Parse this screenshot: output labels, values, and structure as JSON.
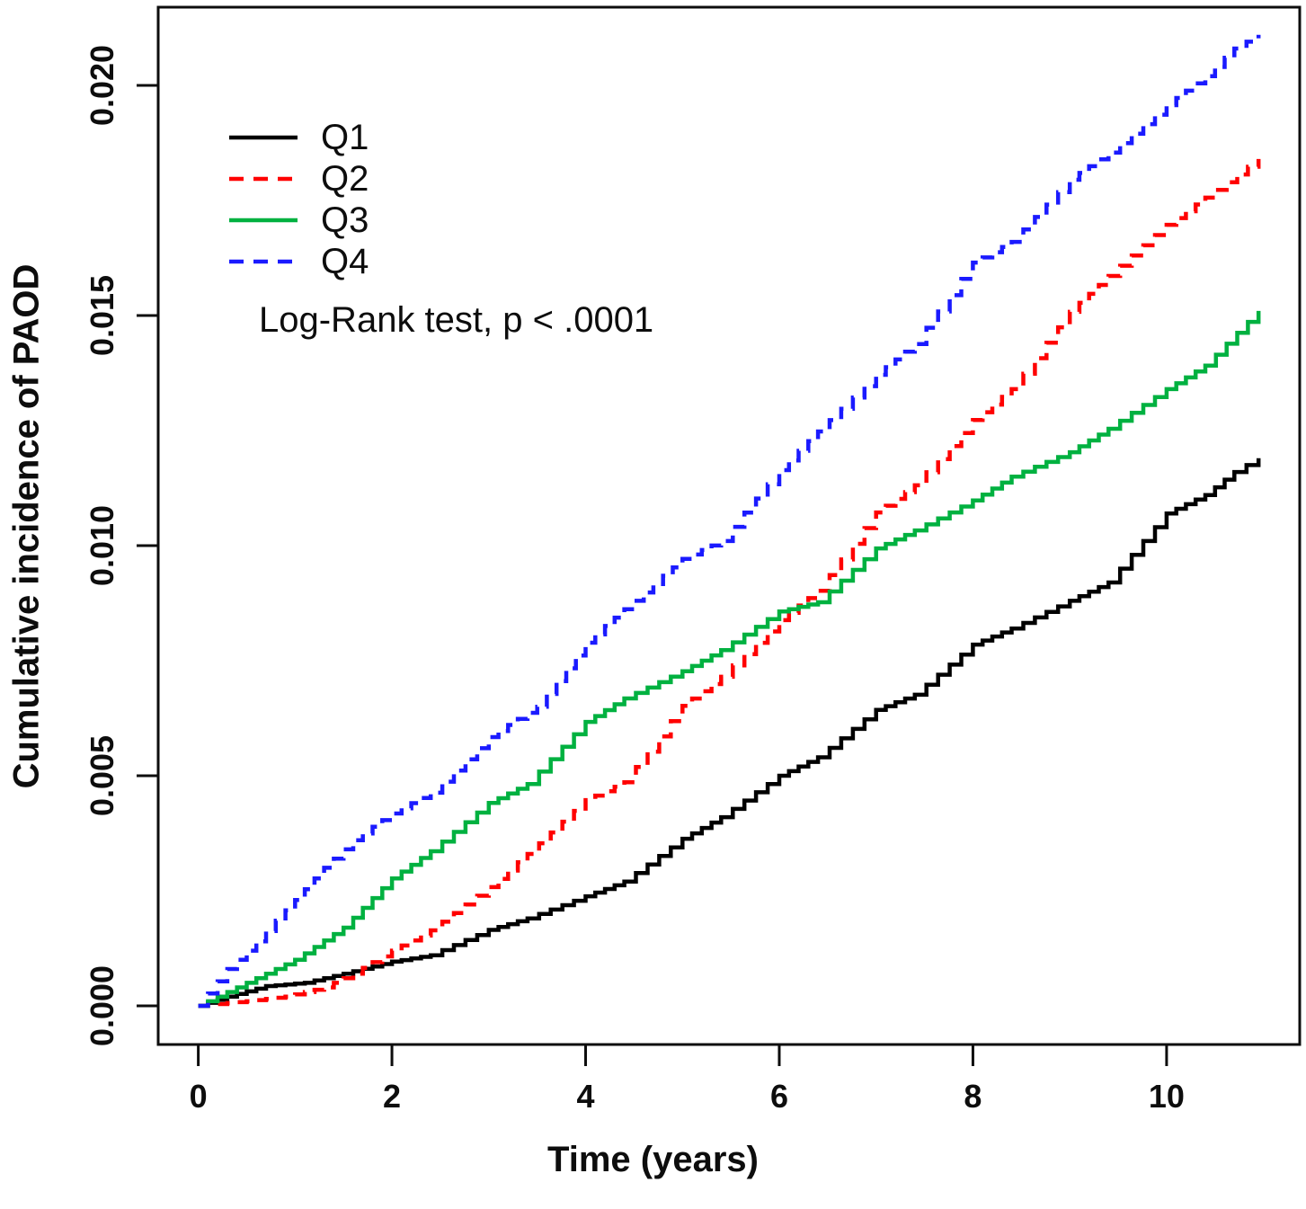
{
  "chart_data": {
    "type": "line",
    "subtype": "cumulative-incidence-step-curves",
    "title": "",
    "xlabel": "Time (years)",
    "ylabel": "Cumulative incidence of PAOD",
    "annotation": "Log-Rank test, p < .0001",
    "xlim": [
      -0.42,
      11.35
    ],
    "ylim": [
      0,
      0.0212
    ],
    "x_ticks": [
      0,
      2,
      4,
      6,
      8,
      10
    ],
    "x_tick_labels": [
      "0",
      "2",
      "4",
      "6",
      "8",
      "10"
    ],
    "y_ticks": [
      0.0,
      0.005,
      0.01,
      0.015,
      0.02
    ],
    "y_tick_labels": [
      "0.000",
      "0.005",
      "0.010",
      "0.015",
      "0.020"
    ],
    "grid": false,
    "legend_position": "top-left",
    "axis_color": "#0d0d0d",
    "series": [
      {
        "name": "Q1",
        "color": "#000000",
        "style": "solid",
        "points": [
          [
            0,
            0
          ],
          [
            0.3,
            0.0002
          ],
          [
            0.7,
            0.00043
          ],
          [
            1.1,
            0.0005
          ],
          [
            1.5,
            0.0007
          ],
          [
            2.0,
            0.00096
          ],
          [
            2.4,
            0.0011
          ],
          [
            3.0,
            0.00165
          ],
          [
            3.4,
            0.0019
          ],
          [
            4.0,
            0.00238
          ],
          [
            4.4,
            0.0027
          ],
          [
            5.0,
            0.00363
          ],
          [
            5.4,
            0.0041
          ],
          [
            6.0,
            0.005
          ],
          [
            6.4,
            0.0054
          ],
          [
            7.0,
            0.00643
          ],
          [
            7.4,
            0.00676
          ],
          [
            8.0,
            0.00785
          ],
          [
            8.4,
            0.0082
          ],
          [
            9.0,
            0.0088
          ],
          [
            9.4,
            0.0092
          ],
          [
            10.0,
            0.0107
          ],
          [
            10.4,
            0.0111
          ],
          [
            10.7,
            0.0116
          ],
          [
            10.95,
            0.0119
          ]
        ]
      },
      {
        "name": "Q2",
        "color": "#ff0000",
        "style": "dashed",
        "points": [
          [
            0,
            0
          ],
          [
            0.5,
            0.0001
          ],
          [
            0.9,
            0.0002
          ],
          [
            1.3,
            0.0004
          ],
          [
            1.6,
            0.0007
          ],
          [
            2.0,
            0.0012
          ],
          [
            2.4,
            0.00164
          ],
          [
            3.0,
            0.00258
          ],
          [
            3.4,
            0.0033
          ],
          [
            4.0,
            0.00447
          ],
          [
            4.4,
            0.00486
          ],
          [
            5.0,
            0.00652
          ],
          [
            5.4,
            0.00715
          ],
          [
            6.0,
            0.00838
          ],
          [
            6.4,
            0.00902
          ],
          [
            7.0,
            0.01072
          ],
          [
            7.4,
            0.01131
          ],
          [
            8.0,
            0.01273
          ],
          [
            8.4,
            0.0134
          ],
          [
            9.0,
            0.01508
          ],
          [
            9.4,
            0.01586
          ],
          [
            10.0,
            0.01697
          ],
          [
            10.4,
            0.01756
          ],
          [
            10.95,
            0.0184
          ]
        ]
      },
      {
        "name": "Q3",
        "color": "#00b140",
        "style": "solid",
        "points": [
          [
            0,
            0
          ],
          [
            0.5,
            0.0005
          ],
          [
            1.0,
            0.001
          ],
          [
            1.5,
            0.0017
          ],
          [
            2.0,
            0.00277
          ],
          [
            2.4,
            0.00336
          ],
          [
            3.0,
            0.00441
          ],
          [
            3.4,
            0.00482
          ],
          [
            4.0,
            0.00617
          ],
          [
            4.4,
            0.00668
          ],
          [
            5.0,
            0.00727
          ],
          [
            5.4,
            0.00773
          ],
          [
            6.0,
            0.00857
          ],
          [
            6.4,
            0.00877
          ],
          [
            7.0,
            0.00994
          ],
          [
            7.4,
            0.01033
          ],
          [
            8.0,
            0.01098
          ],
          [
            8.4,
            0.0115
          ],
          [
            9.0,
            0.01203
          ],
          [
            9.4,
            0.01254
          ],
          [
            10.0,
            0.0134
          ],
          [
            10.4,
            0.01391
          ],
          [
            10.95,
            0.0151
          ]
        ]
      },
      {
        "name": "Q4",
        "color": "#1a1aff",
        "style": "dashed",
        "points": [
          [
            0,
            0
          ],
          [
            0.3,
            0.0008
          ],
          [
            0.6,
            0.0014
          ],
          [
            1.0,
            0.0023
          ],
          [
            1.3,
            0.003
          ],
          [
            1.6,
            0.0036
          ],
          [
            2.0,
            0.00418
          ],
          [
            2.4,
            0.00463
          ],
          [
            3.0,
            0.00584
          ],
          [
            3.5,
            0.0065
          ],
          [
            4.0,
            0.00789
          ],
          [
            4.5,
            0.0088
          ],
          [
            5.0,
            0.00971
          ],
          [
            5.4,
            0.0101
          ],
          [
            6.0,
            0.01164
          ],
          [
            6.4,
            0.01248
          ],
          [
            7.0,
            0.01371
          ],
          [
            7.4,
            0.01438
          ],
          [
            8.0,
            0.01615
          ],
          [
            8.4,
            0.0166
          ],
          [
            9.0,
            0.01795
          ],
          [
            9.4,
            0.01854
          ],
          [
            10.0,
            0.01957
          ],
          [
            10.4,
            0.0202
          ],
          [
            10.7,
            0.0208
          ],
          [
            10.95,
            0.0211
          ]
        ]
      }
    ]
  }
}
